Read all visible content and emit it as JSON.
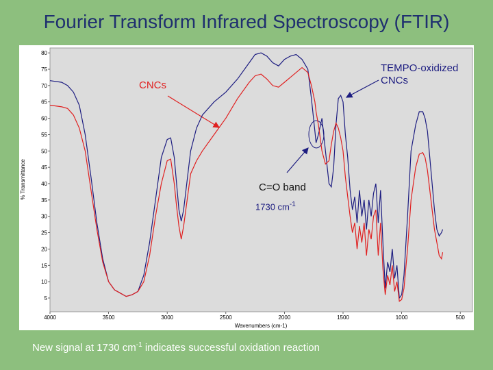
{
  "title": "Fourier Transform Infrared Spectroscopy (FTIR)",
  "footer": {
    "text": "New signal at 1730 cm",
    "sup": "-1",
    "tail": " indicates successful oxidation reaction"
  },
  "chart_data": {
    "type": "line",
    "xlabel": "Wavenumbers (cm-1)",
    "ylabel": "% Transmittance",
    "xlim": [
      4000,
      396
    ],
    "ylim": [
      0.8,
      81.5
    ],
    "xticks": [
      4000,
      3500,
      3000,
      2500,
      2000,
      1500,
      1000,
      500
    ],
    "yticks": [
      5,
      10,
      15,
      20,
      25,
      30,
      35,
      40,
      45,
      50,
      55,
      60,
      65,
      70,
      75,
      80
    ],
    "annotations": [
      {
        "text": "C=O band"
      },
      {
        "text": "1730 cm",
        "sup": "-1"
      }
    ],
    "x": [
      4000,
      3900,
      3850,
      3800,
      3750,
      3700,
      3650,
      3600,
      3550,
      3500,
      3450,
      3400,
      3350,
      3300,
      3250,
      3200,
      3150,
      3100,
      3050,
      3000,
      2970,
      2940,
      2920,
      2900,
      2880,
      2860,
      2800,
      2750,
      2700,
      2600,
      2500,
      2400,
      2300,
      2250,
      2200,
      2150,
      2100,
      2050,
      2000,
      1950,
      1900,
      1850,
      1800,
      1770,
      1740,
      1730,
      1710,
      1680,
      1650,
      1620,
      1600,
      1580,
      1560,
      1540,
      1520,
      1500,
      1480,
      1460,
      1440,
      1420,
      1400,
      1380,
      1360,
      1340,
      1320,
      1300,
      1280,
      1260,
      1240,
      1220,
      1200,
      1180,
      1160,
      1140,
      1120,
      1100,
      1080,
      1060,
      1040,
      1020,
      1000,
      980,
      950,
      920,
      880,
      850,
      820,
      800,
      780,
      760,
      740,
      720,
      700,
      680,
      660,
      650
    ],
    "series": [
      {
        "name": "TEMPO-oxidized CNCs",
        "color": "#1c1c80",
        "values": [
          71.5,
          71,
          70,
          68,
          64,
          55,
          42,
          28,
          17,
          10,
          7.5,
          6.5,
          5.5,
          6,
          7,
          12,
          22,
          35,
          48,
          53.5,
          54,
          48,
          40,
          32,
          28.5,
          32,
          50,
          57,
          61,
          65,
          68,
          72,
          77,
          79.5,
          80,
          79,
          77,
          76,
          78,
          79,
          79.5,
          78,
          75,
          66,
          56,
          52.5,
          55,
          60,
          50,
          40,
          39,
          45,
          58,
          66,
          67,
          65,
          55,
          48,
          38,
          32,
          36,
          28,
          38,
          30,
          35,
          26,
          35,
          30,
          37,
          40,
          28,
          38,
          22,
          8,
          16,
          13,
          20,
          11,
          15,
          5,
          6,
          12,
          30,
          50,
          58,
          62,
          62,
          60,
          56,
          48,
          40,
          32,
          26,
          24,
          25,
          26
        ]
      },
      {
        "name": "CNCs",
        "color": "#e02020",
        "values": [
          64,
          63.5,
          63,
          61,
          57,
          50,
          38,
          26,
          16,
          10,
          7.5,
          6.5,
          5.5,
          6,
          7,
          10,
          18,
          30,
          40,
          47,
          47.5,
          40,
          33,
          27,
          23,
          27,
          43,
          47,
          50,
          55,
          60,
          66,
          71,
          73,
          73.5,
          72,
          70,
          69.5,
          71,
          72.5,
          74,
          75.5,
          74,
          70,
          65,
          62,
          58,
          50,
          46,
          47,
          52,
          56,
          58.5,
          57,
          54,
          50,
          42,
          36,
          30,
          25,
          28,
          20,
          27,
          22,
          28,
          18,
          26,
          23,
          30,
          32,
          18,
          28,
          14,
          6,
          12,
          9,
          15,
          7,
          10,
          4,
          4.5,
          8,
          20,
          35,
          45,
          49,
          49.5,
          48,
          44,
          38,
          32,
          26,
          22,
          18,
          17,
          19
        ]
      }
    ]
  }
}
